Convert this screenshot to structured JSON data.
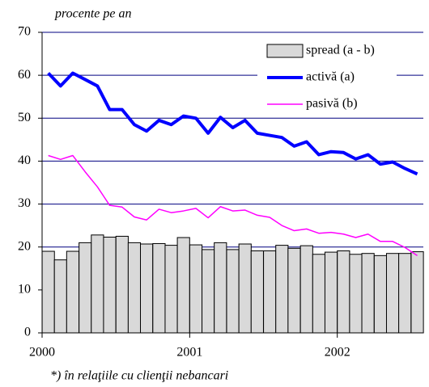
{
  "chart_data": {
    "type": "bar_line",
    "title": "procente pe an",
    "annotation": "*) în relaţiile cu clienţii nebancari",
    "x": [
      2000.042,
      2000.125,
      2000.208,
      2000.292,
      2000.375,
      2000.458,
      2000.542,
      2000.625,
      2000.708,
      2000.792,
      2000.875,
      2000.958,
      2001.042,
      2001.125,
      2001.208,
      2001.292,
      2001.375,
      2001.458,
      2001.542,
      2001.625,
      2001.708,
      2001.792,
      2001.875,
      2001.958,
      2002.042,
      2002.125,
      2002.208,
      2002.292,
      2002.375,
      2002.458,
      2002.542
    ],
    "series": [
      {
        "name": "spread (a - b)",
        "type": "bar",
        "color": "#d9d9d9",
        "values": [
          19,
          17,
          19,
          21,
          22.8,
          22.3,
          22.5,
          21,
          20.7,
          20.8,
          20.4,
          22.2,
          20.5,
          19.4,
          21,
          19.4,
          20.7,
          19.1,
          19.1,
          20.4,
          19.7,
          20.3,
          18.3,
          18.8,
          19.1,
          18.3,
          18.5,
          18,
          18.5,
          18.5,
          18.9
        ]
      },
      {
        "name": "activă (a)",
        "type": "line",
        "color": "#0000ff",
        "values": [
          60.5,
          57.5,
          60.5,
          59,
          57.5,
          52,
          52,
          48.5,
          47,
          49.5,
          48.5,
          50.5,
          50,
          46.5,
          50.2,
          47.8,
          49.5,
          46.5,
          46,
          45.5,
          43.5,
          44.5,
          41.5,
          42.2,
          42,
          40.5,
          41.5,
          39.3,
          39.8,
          38.3,
          37
        ]
      },
      {
        "name": "pasivă (b)",
        "type": "line",
        "color": "#ff00ff",
        "values": [
          41.3,
          40.4,
          41.3,
          37.5,
          34,
          29.7,
          29.3,
          27,
          26.3,
          28.8,
          28,
          28.4,
          29,
          26.8,
          29.4,
          28.4,
          28.6,
          27.4,
          26.9,
          25,
          23.8,
          24.2,
          23.2,
          23.4,
          23,
          22.2,
          23,
          21.3,
          21.3,
          19.9,
          18
        ]
      }
    ],
    "xlim": [
      2000,
      2002.583
    ],
    "xticks": [
      2000,
      2001,
      2002
    ],
    "ylim": [
      0,
      70
    ],
    "yticks": [
      0,
      10,
      20,
      30,
      40,
      50,
      60,
      70
    ],
    "grid": true,
    "grid_color": "#000080",
    "legend": "upper right"
  }
}
